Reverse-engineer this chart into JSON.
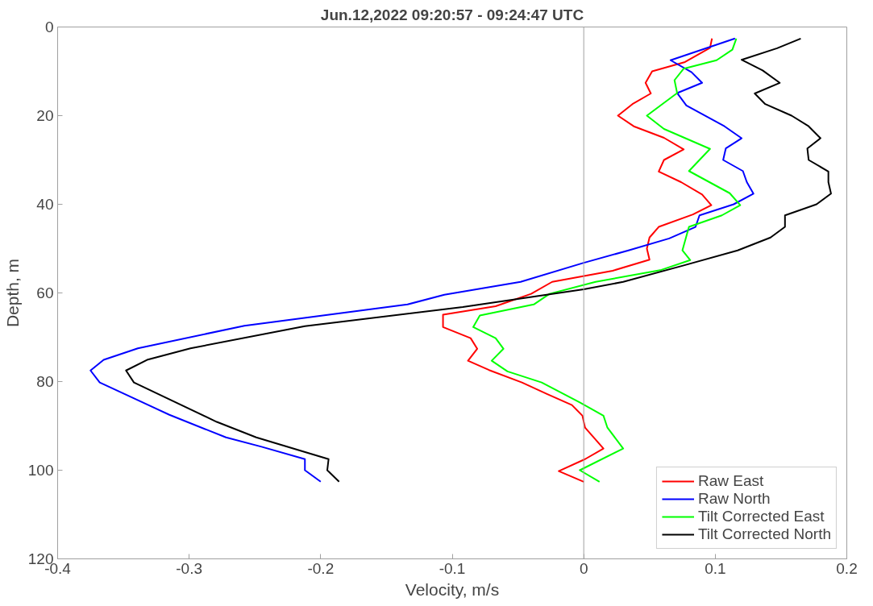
{
  "chart_data": {
    "type": "line",
    "title": "Jun.12,2022 09:20:57 - 09:24:47 UTC",
    "xlabel": "Velocity, m/s",
    "ylabel": "Depth, m",
    "xlim": [
      -0.4,
      0.2
    ],
    "xticks": [
      -0.4,
      -0.3,
      -0.2,
      -0.1,
      0,
      0.1,
      0.2
    ],
    "ylim": [
      120,
      0
    ],
    "yticks": [
      0,
      20,
      40,
      60,
      80,
      100,
      120
    ],
    "grid": false,
    "legend": "bottom right",
    "line_style": "solid",
    "ref_lines": [
      {
        "axis": "x",
        "value": 0,
        "color": "#a0a0a0"
      }
    ],
    "series": [
      {
        "name": "Raw East",
        "color": "#ff0000",
        "x": [
          0.0975,
          0.096,
          0.077,
          0.052,
          0.047,
          0.051,
          0.037,
          0.026,
          0.038,
          0.061,
          0.076,
          0.061,
          0.057,
          0.074,
          0.09,
          0.097,
          0.083,
          0.057,
          0.05,
          0.048,
          0.05,
          0.022,
          -0.024,
          -0.04,
          -0.067,
          -0.107,
          -0.107,
          -0.086,
          -0.081,
          -0.088,
          -0.072,
          -0.047,
          -0.028,
          -0.009,
          -0.001,
          0.001,
          0.015,
          0.001,
          -0.019,
          0
        ],
        "values": [
          2.6,
          4.7,
          7.9,
          10,
          12.6,
          15,
          17.4,
          20,
          22.4,
          25,
          27.6,
          30,
          32.6,
          35,
          37.8,
          40.2,
          42.3,
          45.1,
          47.5,
          50,
          52.5,
          55,
          57.5,
          60.2,
          63,
          64.9,
          67.7,
          70.2,
          72.6,
          75.3,
          77.4,
          80.2,
          82.8,
          85.3,
          87.7,
          90.4,
          95.1,
          97.5,
          100.2,
          102.6
        ]
      },
      {
        "name": "Raw North",
        "color": "#0000ff",
        "x": [
          0.115,
          0.066,
          0.082,
          0.09,
          0.071,
          0.078,
          0.107,
          0.12,
          0.108,
          0.106,
          0.121,
          0.124,
          0.129,
          0.114,
          0.088,
          0.085,
          0.065,
          0.034,
          0,
          -0.048,
          -0.106,
          -0.134,
          -0.258,
          -0.339,
          -0.365,
          -0.375,
          -0.368,
          -0.315,
          -0.272,
          -0.245,
          -0.212,
          -0.212,
          -0.2
        ],
        "values": [
          2.6,
          7.5,
          10.2,
          12.6,
          14.9,
          17.7,
          22.4,
          25.1,
          27.4,
          30,
          32.5,
          35,
          37.6,
          40,
          42.5,
          45.1,
          47.7,
          50.4,
          53.2,
          57.5,
          60.4,
          62.6,
          67.4,
          72.5,
          75.1,
          77.5,
          80.2,
          87.5,
          92.6,
          94.7,
          97.5,
          100,
          102.6
        ]
      },
      {
        "name": "Tilt Corrected East",
        "color": "#00ff00",
        "x": [
          0.116,
          0.113,
          0.101,
          0.076,
          0.069,
          0.071,
          0.048,
          0.061,
          0.096,
          0.08,
          0.111,
          0.119,
          0.105,
          0.08,
          0.075,
          0.081,
          0.059,
          0.009,
          -0.026,
          -0.038,
          -0.079,
          -0.084,
          -0.067,
          -0.061,
          -0.07,
          -0.058,
          -0.032,
          -0.003,
          0.015,
          0.018,
          0.03,
          -0.003,
          0.012
        ],
        "values": [
          2.6,
          5.1,
          7.5,
          9.4,
          12,
          14.9,
          20,
          23,
          27.5,
          32.5,
          37.5,
          40.2,
          42.5,
          45.1,
          50.4,
          52.6,
          54.8,
          57.5,
          60.2,
          62.6,
          65.1,
          67.7,
          70.2,
          72.6,
          75.3,
          77.7,
          80.2,
          84.7,
          87.7,
          90.4,
          95.1,
          100,
          102.6
        ]
      },
      {
        "name": "Tilt Corrected North",
        "color": "#000000",
        "x": [
          0.165,
          0.147,
          0.12,
          0.136,
          0.149,
          0.13,
          0.138,
          0.158,
          0.171,
          0.18,
          0.17,
          0.171,
          0.186,
          0.186,
          0.188,
          0.177,
          0.153,
          0.153,
          0.142,
          0.117,
          0.076,
          0.03,
          0,
          -0.092,
          -0.212,
          -0.299,
          -0.332,
          -0.348,
          -0.342,
          -0.279,
          -0.249,
          -0.194,
          -0.195,
          -0.186
        ],
        "values": [
          2.6,
          4.8,
          7.4,
          9.8,
          12.6,
          15,
          17.4,
          20,
          22.4,
          25.1,
          27.4,
          30,
          32.6,
          35,
          37.6,
          40,
          42.5,
          45.1,
          47.5,
          50.4,
          53.8,
          57.5,
          59.2,
          63.2,
          67.5,
          72.5,
          75.1,
          77.5,
          80.2,
          89.1,
          92.6,
          97.5,
          100,
          102.6
        ]
      }
    ]
  }
}
